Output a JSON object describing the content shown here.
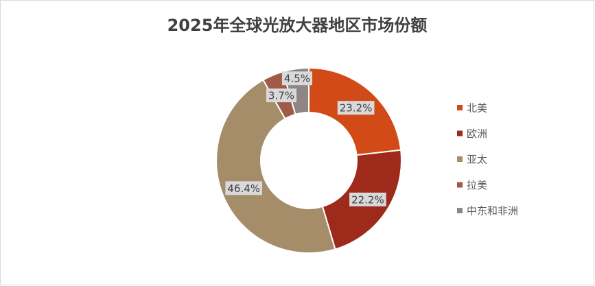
{
  "chart_data": {
    "type": "donut",
    "title": "2025年全球光放大器地区市场份额",
    "categories": [
      "北美",
      "欧洲",
      "亚太",
      "拉美",
      "中东和非洲"
    ],
    "values": [
      23.2,
      22.2,
      46.4,
      3.7,
      4.5
    ],
    "value_labels": [
      "23.2%",
      "22.2%",
      "46.4%",
      "3.7%",
      "4.5%"
    ],
    "colors": [
      "#d24a17",
      "#9e2a1c",
      "#a58d6a",
      "#a05a48",
      "#8f8486"
    ],
    "legend": "right"
  }
}
